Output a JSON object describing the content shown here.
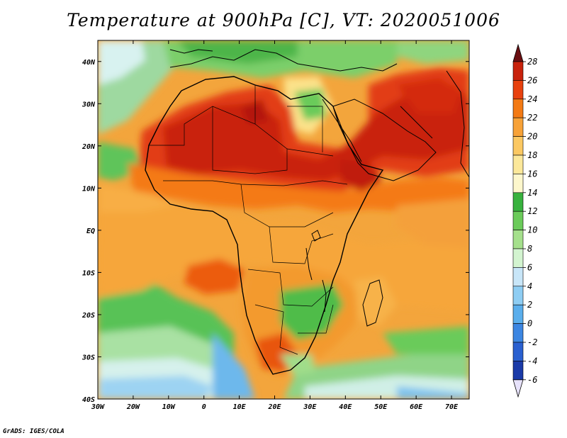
{
  "title": "Temperature at 900hPa [C], VT: 2020051006",
  "credit": "GrADS: IGES/COLA",
  "map": {
    "variable": "Temperature",
    "level": "900hPa",
    "units": "C",
    "valid_time": "2020051006",
    "lon_range": [
      -30,
      75
    ],
    "lat_range": [
      -40,
      45
    ],
    "lat_ticks": [
      "40N",
      "30N",
      "20N",
      "10N",
      "EQ",
      "10S",
      "20S",
      "30S",
      "40S"
    ],
    "lon_ticks": [
      "30W",
      "20W",
      "10W",
      "0",
      "10E",
      "20E",
      "30E",
      "40E",
      "50E",
      "60E",
      "70E"
    ]
  },
  "colorbar": {
    "labels": [
      "28",
      "26",
      "24",
      "22",
      "20",
      "18",
      "16",
      "14",
      "12",
      "10",
      "8",
      "6",
      "4",
      "2",
      "0",
      "-2",
      "-4",
      "-6"
    ],
    "colors": [
      "#6b0f12",
      "#c8220c",
      "#e8410e",
      "#f37a14",
      "#f7a238",
      "#fbc862",
      "#fce89a",
      "#fdf7cc",
      "#38b23e",
      "#6bcb5a",
      "#a5e08c",
      "#d3f4d0",
      "#c8e6f8",
      "#8ecdf3",
      "#5aaeec",
      "#3c86e2",
      "#2a60d0",
      "#1a3aa8",
      "#0c1d6e"
    ]
  }
}
